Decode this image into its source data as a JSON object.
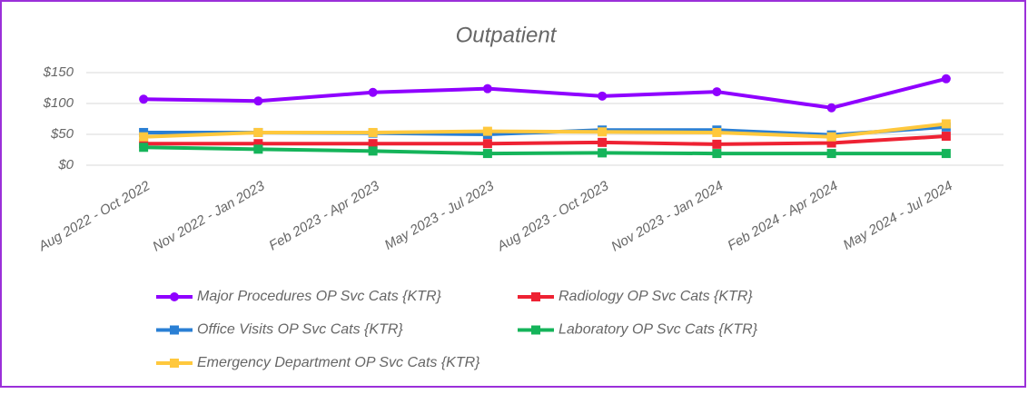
{
  "chart_data": {
    "type": "line",
    "title": "Outpatient",
    "categories": [
      "Aug 2022 - Oct 2022",
      "Nov 2022 - Jan 2023",
      "Feb 2023 - Apr 2023",
      "May 2023 - Jul 2023",
      "Aug 2023 - Oct 2023",
      "Nov 2023 - Jan 2024",
      "Feb 2024 - Apr 2024",
      "May 2024 - Jul 2024"
    ],
    "series": [
      {
        "name": "Major Procedures OP Svc Cats {KTR}",
        "color": "#8f00ff",
        "marker": "circle",
        "values": [
          107,
          104,
          118,
          124,
          112,
          119,
          93,
          140
        ]
      },
      {
        "name": "Radiology OP Svc Cats {KTR}",
        "color": "#ee2233",
        "marker": "square",
        "values": [
          35,
          35,
          35,
          35,
          37,
          34,
          36,
          47
        ]
      },
      {
        "name": "Office Visits OP Svc Cats {KTR}",
        "color": "#2a7fd4",
        "marker": "square",
        "values": [
          53,
          53,
          52,
          50,
          57,
          57,
          49,
          62
        ]
      },
      {
        "name": "Laboratory OP Svc Cats {KTR}",
        "color": "#15b45a",
        "marker": "square",
        "values": [
          29,
          26,
          23,
          19,
          20,
          19,
          19,
          19
        ]
      },
      {
        "name": "Emergency Department OP Svc Cats {KTR}",
        "color": "#ffc83d",
        "marker": "square",
        "values": [
          46,
          53,
          53,
          55,
          54,
          53,
          46,
          67
        ]
      }
    ],
    "ylim": [
      0,
      150
    ],
    "yticks": [
      {
        "value": 0,
        "label": "$0"
      },
      {
        "value": 50,
        "label": "$50"
      },
      {
        "value": 100,
        "label": "$100"
      },
      {
        "value": 150,
        "label": "$150"
      }
    ],
    "grid": true,
    "legend": "bottom"
  }
}
